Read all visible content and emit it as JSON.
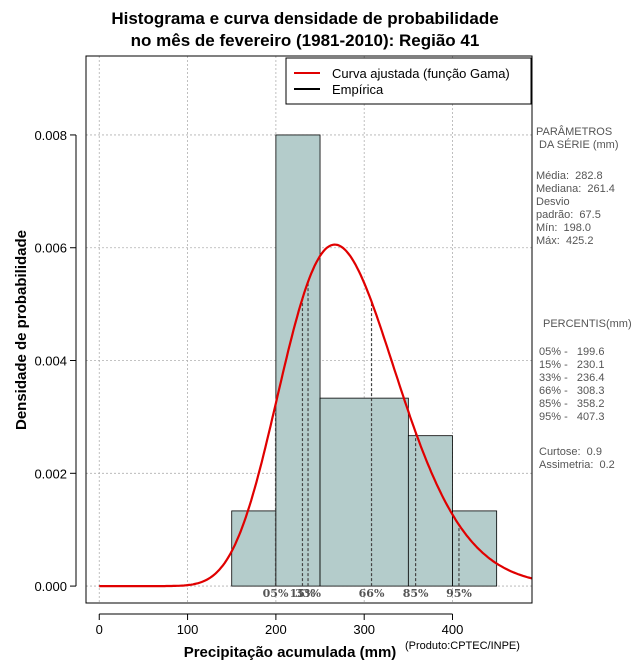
{
  "chart_data": {
    "type": "bar",
    "title_line1": "Histograma e curva densidade de probabilidade",
    "title_line2": "no mês de fevereiro (1981-2010): Região 41",
    "xlabel": "Precipitação acumulada (mm)",
    "ylabel": "Densidade de probabilidade",
    "xlim": [
      -15,
      490
    ],
    "ylim": [
      -0.0003,
      0.0094
    ],
    "x_ticks": [
      0,
      100,
      200,
      300,
      400
    ],
    "y_ticks": [
      0.0,
      0.002,
      0.004,
      0.006,
      0.008
    ],
    "y_tick_labels": [
      "0.000",
      "0.002",
      "0.004",
      "0.006",
      "0.008"
    ],
    "grid": true,
    "bins": [
      {
        "x0": 150,
        "x1": 200,
        "density": 0.001333
      },
      {
        "x0": 200,
        "x1": 250,
        "density": 0.008
      },
      {
        "x0": 250,
        "x1": 350,
        "density": 0.003333
      },
      {
        "x0": 350,
        "x1": 400,
        "density": 0.002667
      },
      {
        "x0": 400,
        "x1": 450,
        "density": 0.001333
      }
    ],
    "gamma_fit": {
      "mean": 282.8,
      "sd": 67.5
    },
    "series": [
      {
        "name": "Curva ajustada (função Gama)",
        "color": "#e00000"
      },
      {
        "name": "Empírica",
        "color": "#000000"
      }
    ],
    "percentile_lines": [
      {
        "label": "05%",
        "value": 199.6
      },
      {
        "label": "15%",
        "value": 230.1
      },
      {
        "label": "33%",
        "value": 236.4
      },
      {
        "label": "66%",
        "value": 308.3
      },
      {
        "label": "85%",
        "value": 358.2
      },
      {
        "label": "95%",
        "value": 407.3
      }
    ],
    "legend_position": "top-right"
  },
  "side_panel": {
    "params_title": "PARÂMETROS\n DA SÉRIE (mm)",
    "params": "Média:  282.8\nMediana:  261.4\nDesvio\npadrão:  67.5\nMín:  198.0\nMáx:  425.2",
    "percentis_title": "PERCENTIS(mm)",
    "percentis": "05% -   199.6\n15% -   230.1\n33% -   236.4\n66% -   308.3\n85% -   358.2\n95% -   407.3",
    "stats": "Curtose:  0.9\nAssimetria:  0.2"
  },
  "credit": "(Produto:CPTEC/INPE)",
  "colors": {
    "bar_fill": "#b4cccb",
    "curve": "#e00000",
    "grid": "#b0b0b0"
  }
}
